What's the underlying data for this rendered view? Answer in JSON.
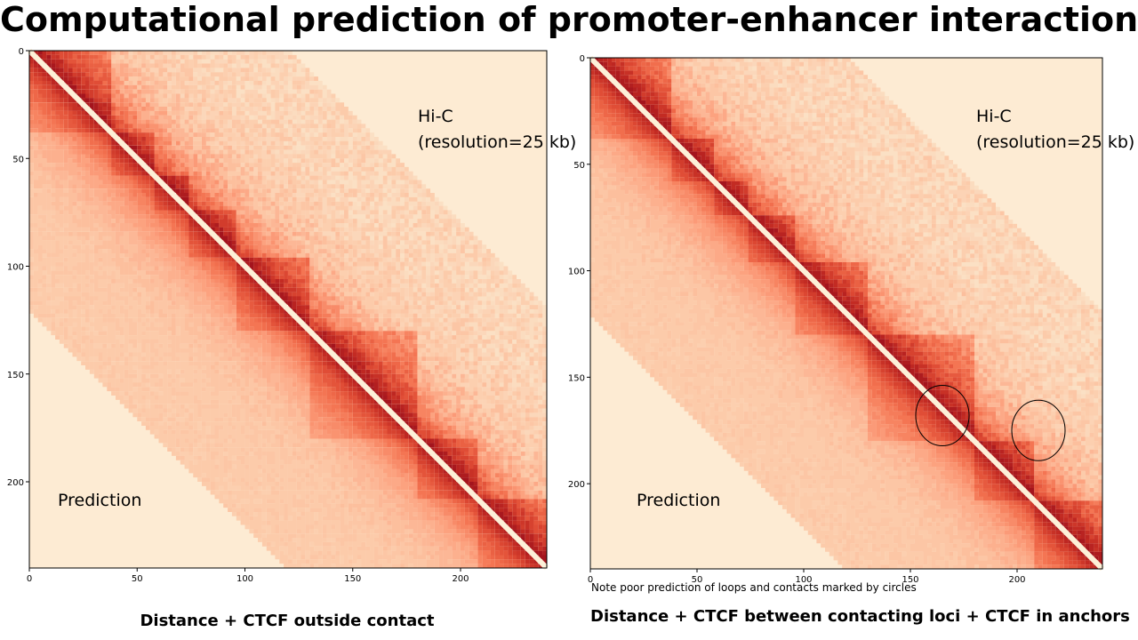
{
  "title": "Computational prediction of promoter-enhancer interactions",
  "note": "Note poor prediction of loops and contacts marked by circles",
  "colors": {
    "background": "#fdebd3",
    "diagonal": "#fdf0d8",
    "ramp": [
      "#fbe0c4",
      "#fcc7a6",
      "#fc9d7a",
      "#f3714f",
      "#df4b34",
      "#c22a23",
      "#a4141d"
    ]
  },
  "chart_data": [
    {
      "type": "heatmap",
      "caption": "Distance + CTCF outside contact",
      "upper_label_line1": "Hi-C",
      "upper_label_line2": "(resolution=25 kb)",
      "lower_label": "Prediction",
      "xlim": [
        0,
        240
      ],
      "ylim": [
        0,
        240
      ],
      "xticks": [
        "0",
        "50",
        "100",
        "150",
        "200"
      ],
      "yticks": [
        "0",
        "50",
        "100",
        "150",
        "200"
      ],
      "domains": [
        [
          0,
          38
        ],
        [
          38,
          57
        ],
        [
          57,
          73
        ],
        [
          73,
          95
        ],
        [
          95,
          130
        ],
        [
          130,
          180
        ],
        [
          180,
          208
        ],
        [
          208,
          240
        ]
      ],
      "circles": []
    },
    {
      "type": "heatmap",
      "caption": "Distance + CTCF between contacting loci + CTCF in anchors",
      "upper_label_line1": "Hi-C",
      "upper_label_line2": "(resolution=25 kb)",
      "lower_label": "Prediction",
      "xlim": [
        0,
        240
      ],
      "ylim": [
        0,
        240
      ],
      "xticks": [
        "0",
        "50",
        "100",
        "150",
        "200"
      ],
      "yticks": [
        "0",
        "50",
        "100",
        "150",
        "200"
      ],
      "domains": [
        [
          0,
          38
        ],
        [
          38,
          57
        ],
        [
          57,
          73
        ],
        [
          73,
          95
        ],
        [
          95,
          130
        ],
        [
          130,
          180
        ],
        [
          180,
          208
        ],
        [
          208,
          240
        ]
      ],
      "circles": [
        [
          165,
          168
        ],
        [
          210,
          175
        ]
      ]
    }
  ]
}
